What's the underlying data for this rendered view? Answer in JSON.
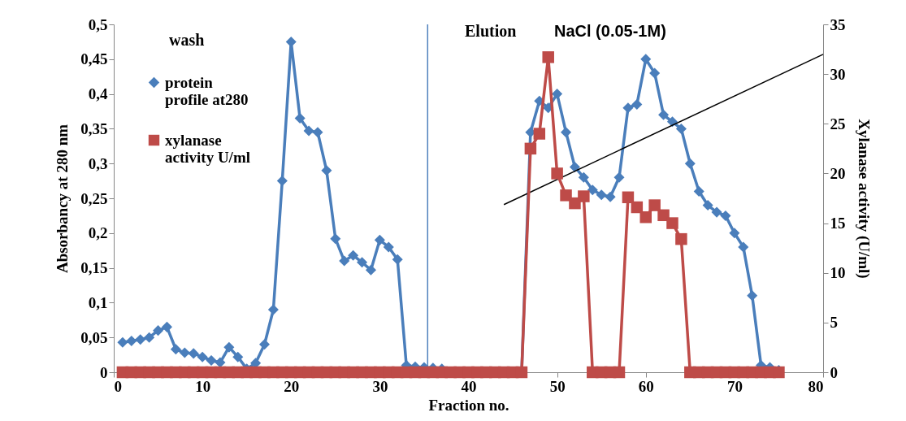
{
  "chart_data": {
    "type": "line",
    "xlabel": "Fraction no.",
    "ylabel": "Absorbancy at 280 nm",
    "y2label": "Xylanase activity (U/ml)",
    "xlim": [
      0,
      80
    ],
    "xticks": [
      0,
      10,
      20,
      30,
      40,
      50,
      60,
      70,
      80
    ],
    "ylim": [
      0,
      0.5
    ],
    "yticks": [
      0,
      {
        "value": 0.05,
        "label": "0,05"
      },
      {
        "value": 0.1,
        "label": "0,1"
      },
      {
        "value": 0.15,
        "label": "0,15"
      },
      {
        "value": 0.2,
        "label": "0,2"
      },
      {
        "value": 0.25,
        "label": "0,25"
      },
      {
        "value": 0.3,
        "label": "0,3"
      },
      {
        "value": 0.35,
        "label": "0,35"
      },
      {
        "value": 0.4,
        "label": "0,4"
      },
      {
        "value": 0.45,
        "label": "0,45"
      },
      {
        "value": 0.5,
        "label": "0,5"
      }
    ],
    "y2lim": [
      0,
      35
    ],
    "y2ticks": [
      0,
      5,
      10,
      15,
      20,
      25,
      30,
      35
    ],
    "grid": false,
    "legend": "top left",
    "line_style": "solid",
    "annotations": [
      "wash",
      "Elution",
      "NaCl (0.05-1M)"
    ],
    "ref_lines": [
      {
        "axis": "x",
        "value": 35.4,
        "color": "#4f81bd"
      }
    ],
    "x": [
      1,
      2,
      3,
      4,
      5,
      6,
      7,
      8,
      9,
      10,
      11,
      12,
      13,
      14,
      15,
      16,
      17,
      18,
      19,
      20,
      21,
      22,
      23,
      24,
      25,
      26,
      27,
      28,
      29,
      30,
      31,
      32,
      33,
      34,
      35,
      36,
      37,
      38,
      39,
      40,
      41,
      42,
      43,
      44,
      45,
      46,
      47,
      48,
      49,
      50,
      51,
      52,
      53,
      54,
      55,
      56,
      57,
      58,
      59,
      60,
      61,
      62,
      63,
      64,
      65,
      66,
      67,
      68,
      69,
      70,
      71,
      72,
      73,
      74,
      75
    ],
    "series": [
      {
        "name": "protein profile at280",
        "color": "#4a7ebb",
        "marker": "diamond",
        "values": [
          0.043,
          0.045,
          0.047,
          0.05,
          0.06,
          0.065,
          0.033,
          0.028,
          0.027,
          0.022,
          0.017,
          0.014,
          0.036,
          0.022,
          0.005,
          0.013,
          0.04,
          0.09,
          0.275,
          0.475,
          0.365,
          0.347,
          0.345,
          0.29,
          0.192,
          0.16,
          0.168,
          0.158,
          0.147,
          0.19,
          0.18,
          0.162,
          0.01,
          0.008,
          0.007,
          0.006,
          0.005,
          0,
          0,
          0,
          0,
          0,
          0,
          0,
          0,
          0,
          0.345,
          0.39,
          0.38,
          0.4,
          0.345,
          0.295,
          0.28,
          0.262,
          0.255,
          0.252,
          0.28,
          0.38,
          0.385,
          0.45,
          0.43,
          0.37,
          0.36,
          0.35,
          0.3,
          0.26,
          0.24,
          0.23,
          0.225,
          0.2,
          0.18,
          0.11,
          0.01,
          0.007,
          0.003
        ]
      },
      {
        "name": "xylanase activity U/ml",
        "color": "#be4b48",
        "marker": "square",
        "axis": "y2",
        "values": [
          0,
          0,
          0,
          0,
          0,
          0,
          0,
          0,
          0,
          0,
          0,
          0,
          0,
          0,
          0,
          0,
          0,
          0,
          0,
          0,
          0,
          0,
          0,
          0,
          0,
          0,
          0,
          0,
          0,
          0,
          0,
          0,
          0,
          0,
          0,
          0,
          0,
          0,
          0,
          0,
          0,
          0,
          0,
          0,
          0,
          0,
          22.5,
          24,
          31.7,
          20,
          17.8,
          17,
          17.7,
          0,
          0,
          0,
          0,
          17.6,
          16.6,
          15.6,
          16.8,
          15.8,
          15,
          13.4,
          0,
          0,
          0,
          0,
          0,
          0,
          0,
          0,
          0,
          0,
          0
        ]
      },
      {
        "color": "#000000",
        "marker": "none",
        "x": [
          44,
          80
        ],
        "values": [
          0.241,
          0.457
        ]
      }
    ]
  }
}
